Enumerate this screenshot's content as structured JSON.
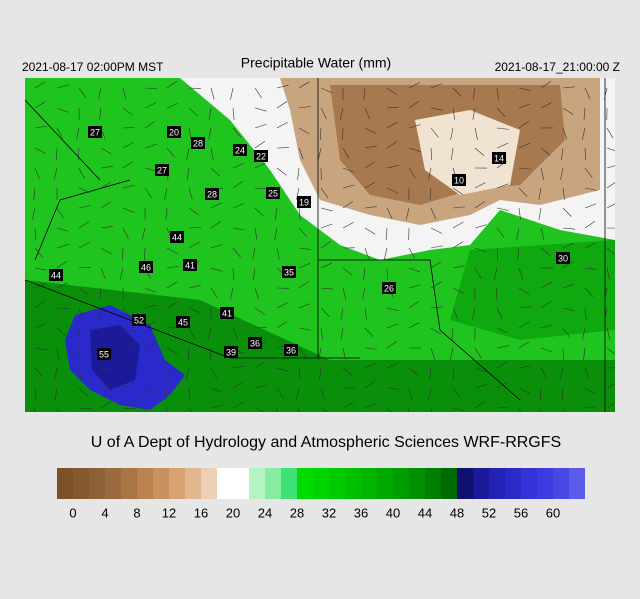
{
  "header": {
    "title": "Precipitable Water (mm)",
    "valid_local": "2021-08-17 02:00PM MST",
    "valid_utc": "2021-08-17_21:00:00 Z"
  },
  "stations": [
    "27",
    "20",
    "28",
    "24",
    "22",
    "27",
    "28",
    "25",
    "19",
    "44",
    "46",
    "41",
    "35",
    "44",
    "52",
    "45",
    "41",
    "55",
    "36",
    "36",
    "39",
    "26",
    "30",
    "14",
    "10"
  ],
  "credit": "U of A Dept of Hydrology and Atmospheric Sciences WRF-RRGFS",
  "colorbar": {
    "ticks": [
      "0",
      "4",
      "8",
      "12",
      "16",
      "20",
      "24",
      "28",
      "32",
      "36",
      "40",
      "44",
      "48",
      "52",
      "56",
      "60"
    ]
  }
}
